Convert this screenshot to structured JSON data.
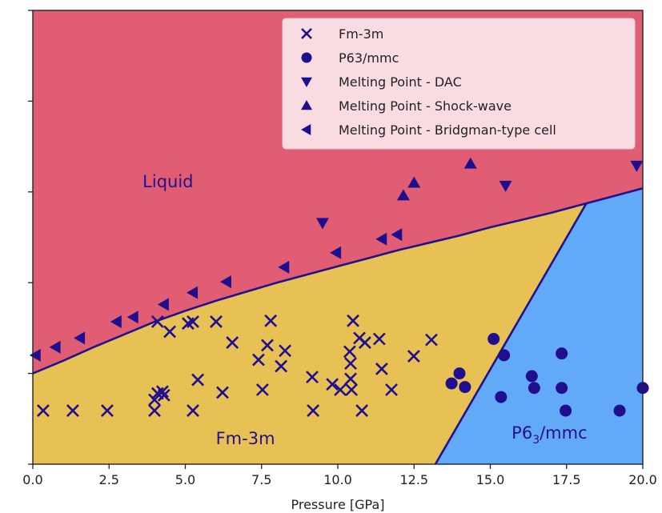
{
  "chart_data": {
    "type": "scatter",
    "title": "",
    "xlabel": "Pressure [GPa]",
    "ylabel": "",
    "xlim": [
      0,
      20
    ],
    "ylim": [
      0,
      5
    ],
    "x_ticks": [
      0.0,
      2.5,
      5.0,
      7.5,
      10.0,
      12.5,
      15.0,
      17.5,
      20.0
    ],
    "x_tick_labels": [
      "0.0",
      "2.5",
      "5.0",
      "7.5",
      "10.0",
      "12.5",
      "15.0",
      "17.5",
      "20.0"
    ],
    "y_ticks": [
      0,
      1,
      2,
      3,
      4,
      5
    ],
    "y_tick_labels": [
      "",
      "",
      "",
      "",
      "",
      ""
    ],
    "grid": false,
    "legend_position": "top-right",
    "colors": {
      "marker": "#1f0f8f",
      "liquid": "#e15d73",
      "fcc": "#e8c154",
      "hcp": "#62a9f7",
      "legend_bg": "#f9dce1",
      "boundary": "#22108c"
    },
    "regions": [
      {
        "name": "Liquid",
        "label": "Liquid",
        "label_at": [
          3.6,
          3.05
        ],
        "color_key": "liquid"
      },
      {
        "name": "Fm-3m",
        "label": "Fm-3m",
        "label_at": [
          6.0,
          0.22
        ],
        "color_key": "fcc"
      },
      {
        "name": "P63/mmc",
        "label": "P6",
        "label_sub": "3",
        "label_tail": "/mmc",
        "label_at": [
          15.7,
          0.28
        ],
        "color_key": "hcp"
      }
    ],
    "boundaries": {
      "melting_curve": {
        "x": [
          0,
          1,
          2,
          3,
          4,
          5,
          6,
          7,
          8,
          9,
          10,
          11,
          12,
          13,
          14,
          15,
          16,
          17,
          18,
          19,
          20
        ],
        "y": [
          1.0,
          1.14,
          1.29,
          1.43,
          1.57,
          1.69,
          1.8,
          1.9,
          2.0,
          2.09,
          2.18,
          2.27,
          2.36,
          2.44,
          2.52,
          2.61,
          2.69,
          2.77,
          2.86,
          2.95,
          3.04
        ]
      },
      "fcc_hcp": {
        "x": [
          13.2,
          18.15
        ],
        "y": [
          0.0,
          3.04
        ]
      }
    },
    "series": [
      {
        "name": "Fm-3m",
        "marker": "x",
        "points": [
          [
            0.34,
            0.59
          ],
          [
            1.31,
            0.59
          ],
          [
            2.44,
            0.59
          ],
          [
            3.99,
            0.59
          ],
          [
            3.99,
            0.71
          ],
          [
            4.09,
            0.78
          ],
          [
            4.25,
            0.8
          ],
          [
            4.3,
            0.76
          ],
          [
            4.09,
            1.57
          ],
          [
            4.49,
            1.46
          ],
          [
            5.09,
            1.55
          ],
          [
            5.25,
            1.57
          ],
          [
            6.01,
            1.57
          ],
          [
            5.41,
            0.93
          ],
          [
            5.25,
            0.59
          ],
          [
            6.22,
            0.79
          ],
          [
            6.54,
            1.34
          ],
          [
            7.4,
            1.15
          ],
          [
            7.53,
            0.82
          ],
          [
            7.69,
            1.31
          ],
          [
            7.8,
            1.58
          ],
          [
            8.14,
            1.08
          ],
          [
            8.27,
            1.25
          ],
          [
            9.16,
            0.96
          ],
          [
            9.19,
            0.59
          ],
          [
            9.82,
            0.88
          ],
          [
            10.08,
            0.82
          ],
          [
            10.39,
            1.24
          ],
          [
            10.42,
            1.11
          ],
          [
            10.42,
            0.94
          ],
          [
            10.45,
            0.82
          ],
          [
            10.5,
            1.58
          ],
          [
            10.71,
            1.39
          ],
          [
            10.89,
            1.34
          ],
          [
            10.79,
            0.59
          ],
          [
            11.36,
            1.38
          ],
          [
            11.44,
            1.05
          ],
          [
            11.76,
            0.82
          ],
          [
            12.49,
            1.19
          ],
          [
            13.07,
            1.37
          ]
        ]
      },
      {
        "name": "P63/mmc",
        "marker": "o",
        "points": [
          [
            13.73,
            0.89
          ],
          [
            13.99,
            1.0
          ],
          [
            14.17,
            0.85
          ],
          [
            15.11,
            1.38
          ],
          [
            15.45,
            1.2
          ],
          [
            15.35,
            0.74
          ],
          [
            16.36,
            0.97
          ],
          [
            16.44,
            0.84
          ],
          [
            17.34,
            1.22
          ],
          [
            17.34,
            0.84
          ],
          [
            17.47,
            0.59
          ],
          [
            19.24,
            0.59
          ],
          [
            20.0,
            0.84
          ]
        ]
      },
      {
        "name": "Melting Point - DAC",
        "marker": "v",
        "points": [
          [
            9.5,
            2.66
          ],
          [
            15.5,
            3.07
          ],
          [
            19.8,
            3.29
          ]
        ]
      },
      {
        "name": "Melting Point - Shock-wave",
        "marker": "^",
        "points": [
          [
            12.15,
            2.96
          ],
          [
            12.5,
            3.1
          ],
          [
            14.35,
            3.31
          ]
        ]
      },
      {
        "name": "Melting Point - Bridgman-type cell",
        "marker": "<",
        "points": [
          [
            0.1,
            1.2
          ],
          [
            0.75,
            1.29
          ],
          [
            1.55,
            1.39
          ],
          [
            2.75,
            1.57
          ],
          [
            3.3,
            1.62
          ],
          [
            4.3,
            1.76
          ],
          [
            5.25,
            1.89
          ],
          [
            6.35,
            2.01
          ],
          [
            8.25,
            2.17
          ],
          [
            9.95,
            2.33
          ],
          [
            11.45,
            2.48
          ],
          [
            11.95,
            2.53
          ]
        ]
      }
    ],
    "legend": [
      {
        "marker": "x",
        "label": "Fm-3m"
      },
      {
        "marker": "o",
        "label": "P63/mmc"
      },
      {
        "marker": "v",
        "label": "Melting Point - DAC"
      },
      {
        "marker": "^",
        "label": "Melting Point - Shock-wave"
      },
      {
        "marker": "<",
        "label": "Melting Point - Bridgman-type cell"
      }
    ]
  }
}
